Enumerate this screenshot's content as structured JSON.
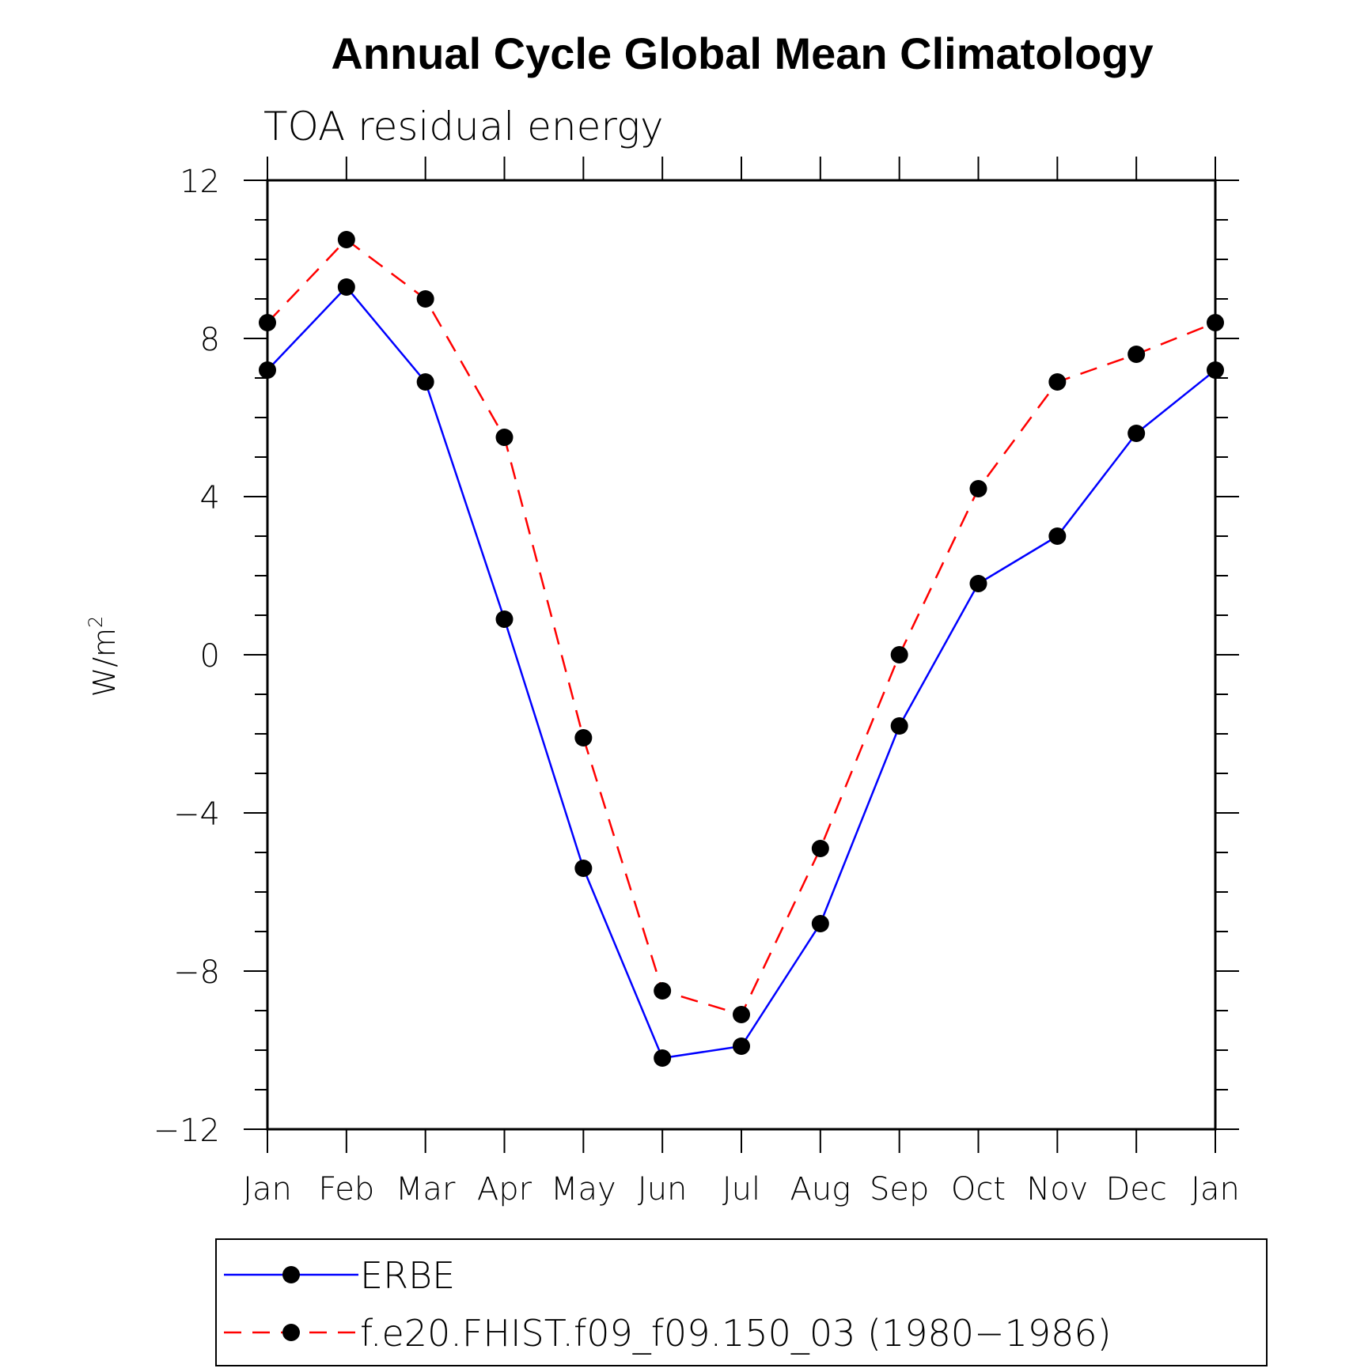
{
  "chart_data": {
    "type": "line",
    "title": "Annual Cycle Global Mean Climatology",
    "subtitle": "TOA residual energy",
    "ylabel": "W/m",
    "ylabel_sup": "2",
    "xlabel": "",
    "categories": [
      "Jan",
      "Feb",
      "Mar",
      "Apr",
      "May",
      "Jun",
      "Jul",
      "Aug",
      "Sep",
      "Oct",
      "Nov",
      "Dec",
      "Jan"
    ],
    "ylim": [
      -12,
      12
    ],
    "yticks": [
      -12,
      -8,
      -4,
      0,
      4,
      8,
      12
    ],
    "ytick_labels": [
      "−12",
      "−8",
      "−4",
      "0",
      "4",
      "8",
      "12"
    ],
    "grid": false,
    "legend_position": "bottom",
    "series": [
      {
        "name": "ERBE",
        "color": "#0000ff",
        "dash": "solid",
        "marker": "filled-circle",
        "values": [
          7.2,
          9.3,
          6.9,
          0.9,
          -5.4,
          -10.2,
          -9.9,
          -6.8,
          -1.8,
          1.8,
          3.0,
          5.6,
          7.2
        ]
      },
      {
        "name": "f.e20.FHIST.f09_f09.150_03 (1980−1986)",
        "color": "#ff0000",
        "dash": "dashed",
        "marker": "filled-circle",
        "values": [
          8.4,
          10.5,
          9.0,
          5.5,
          -2.1,
          -8.5,
          -9.1,
          -4.9,
          0.0,
          4.2,
          6.9,
          7.6,
          8.4
        ]
      }
    ]
  }
}
